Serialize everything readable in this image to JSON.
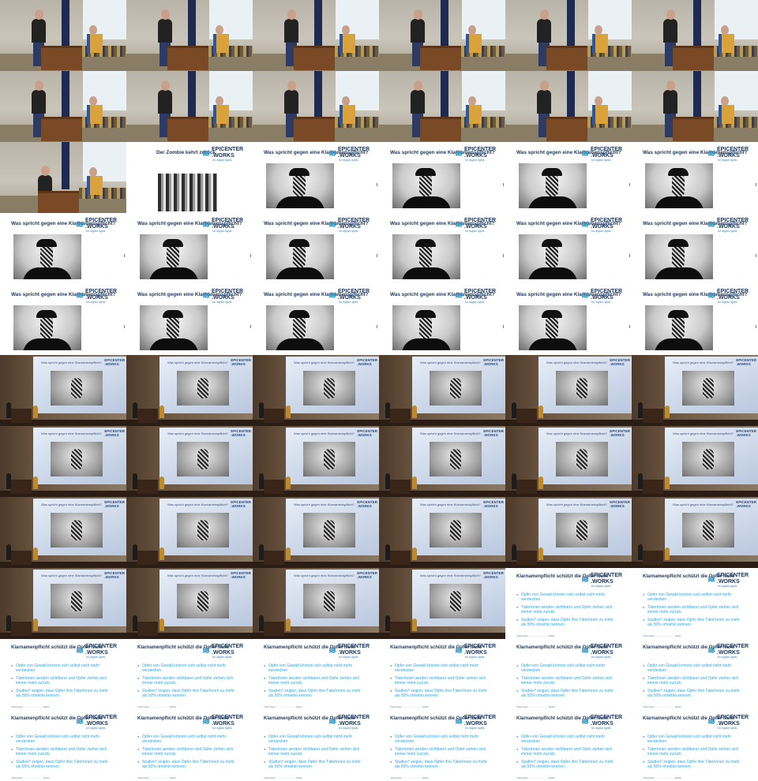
{
  "grid": {
    "columns": 6,
    "rows": 11
  },
  "logo": {
    "line1": "EPICENTER",
    "line2": ".WORKS",
    "tagline": "for digital rights",
    "mark": "≋"
  },
  "slides": {
    "zombie": {
      "title": "Der Zombie kehrt zurück",
      "paragraph": "…"
    },
    "klarnamen": {
      "title": "Was spricht gegen eine Klarnamenspflicht?"
    },
    "opfer": {
      "title": "Klarnamenpflicht schützt die Opfer nicht",
      "bullets": [
        "Opfer von Gewalt können sich selbst nicht mehr verstecken",
        "TäterInnen werden sichtbarer und Opfer ziehen sich immer mehr zurück",
        "Studien* zeigen, dass Opfer ihre TäterInnen zu mehr als 50% ohnehin kennen"
      ],
      "footnote": "*https://www.....................................(2019)"
    }
  },
  "tiles": [
    "speaker",
    "speaker",
    "speaker",
    "speaker",
    "speaker",
    "speaker",
    "speaker",
    "speaker",
    "speaker",
    "speaker",
    "speaker",
    "speaker",
    "speaker-alt",
    "zombie",
    "klarnamen",
    "klarnamen",
    "klarnamen",
    "klarnamen",
    "klarnamen",
    "klarnamen",
    "klarnamen",
    "klarnamen",
    "klarnamen",
    "klarnamen",
    "klarnamen",
    "klarnamen",
    "klarnamen",
    "klarnamen",
    "klarnamen",
    "klarnamen",
    "hall",
    "hall",
    "hall",
    "hall",
    "hall",
    "hall",
    "hall",
    "hall",
    "hall",
    "hall",
    "hall",
    "hall",
    "hall",
    "hall",
    "hall",
    "hall",
    "hall",
    "hall",
    "hall",
    "hall",
    "hall",
    "hall",
    "opfer",
    "opfer",
    "opfer",
    "opfer",
    "opfer",
    "opfer",
    "opfer",
    "opfer",
    "opfer",
    "opfer",
    "opfer",
    "opfer",
    "opfer",
    "opfer"
  ]
}
